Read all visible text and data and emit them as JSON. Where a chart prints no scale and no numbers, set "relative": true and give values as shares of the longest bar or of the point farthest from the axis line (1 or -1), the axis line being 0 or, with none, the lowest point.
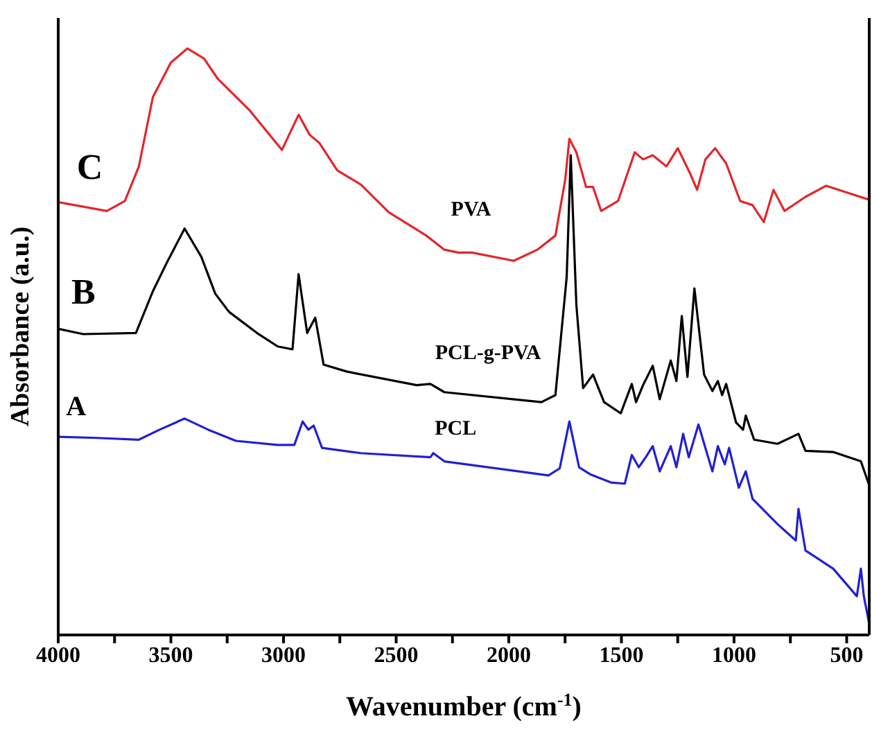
{
  "chart_data": {
    "type": "line",
    "relative": true,
    "xlabel": "Wavenumber (cm$^{-1}$)",
    "ylabel": "Absorbance (a.u.)",
    "xlim": [
      4000,
      400
    ],
    "xticks": [
      4000,
      {
        "value": 3750,
        "label": null
      },
      3500,
      {
        "value": 3250,
        "label": null
      },
      3000,
      {
        "value": 2750,
        "label": null
      },
      2500,
      {
        "value": 2250,
        "label": null
      },
      2000,
      {
        "value": 1750,
        "label": null
      },
      1500,
      {
        "value": 1250,
        "label": null
      },
      1000,
      {
        "value": 750,
        "label": null
      },
      500
    ],
    "marker": "none",
    "line_style": "solid",
    "annotations": [
      "C",
      "B",
      "A"
    ],
    "series": [
      {
        "name": "PVA",
        "color": "#e3262b",
        "x": [
          4000,
          3784,
          3704,
          3642,
          3580,
          3500,
          3427,
          3353,
          3291,
          3149,
          3007,
          2933,
          2884,
          2841,
          2761,
          2656,
          2533,
          2366,
          2286,
          2224,
          2163,
          1978,
          1873,
          1793,
          1750,
          1731,
          1700,
          1657,
          1626,
          1590,
          1515,
          1441,
          1404,
          1361,
          1300,
          1250,
          1195,
          1164,
          1127,
          1084,
          1035,
          973,
          918,
          868,
          825,
          776,
          683,
          591,
          480,
          400
        ],
        "values": [
          0.738,
          0.723,
          0.74,
          0.799,
          0.917,
          0.976,
          1,
          0.983,
          0.948,
          0.894,
          0.827,
          0.887,
          0.853,
          0.839,
          0.792,
          0.768,
          0.721,
          0.681,
          0.657,
          0.652,
          0.652,
          0.638,
          0.657,
          0.681,
          0.775,
          0.846,
          0.823,
          0.764,
          0.764,
          0.723,
          0.74,
          0.823,
          0.811,
          0.818,
          0.799,
          0.83,
          0.787,
          0.759,
          0.811,
          0.83,
          0.804,
          0.74,
          0.733,
          0.704,
          0.759,
          0.723,
          0.747,
          0.766,
          0.752,
          0.742
        ]
      },
      {
        "name": "PCL-g-PVA",
        "color": "#000000",
        "x": [
          4000,
          3889,
          3655,
          3580,
          3519,
          3439,
          3365,
          3303,
          3242,
          3118,
          3026,
          2960,
          2933,
          2895,
          2859,
          2822,
          2718,
          2409,
          2348,
          2286,
          1855,
          1793,
          1743,
          1725,
          1700,
          1670,
          1626,
          1577,
          1503,
          1454,
          1435,
          1404,
          1361,
          1330,
          1281,
          1256,
          1232,
          1207,
          1176,
          1133,
          1096,
          1072,
          1053,
          1035,
          991,
          960,
          948,
          911,
          807,
          714,
          683,
          560,
          437,
          400
        ],
        "values": [
          0.522,
          0.513,
          0.515,
          0.586,
          0.634,
          0.693,
          0.645,
          0.582,
          0.551,
          0.515,
          0.492,
          0.487,
          0.615,
          0.515,
          0.541,
          0.461,
          0.449,
          0.426,
          0.428,
          0.414,
          0.397,
          0.409,
          0.61,
          0.818,
          0.563,
          0.421,
          0.444,
          0.397,
          0.378,
          0.428,
          0.397,
          0.426,
          0.459,
          0.402,
          0.468,
          0.433,
          0.544,
          0.44,
          0.591,
          0.444,
          0.416,
          0.433,
          0.409,
          0.428,
          0.362,
          0.35,
          0.374,
          0.333,
          0.326,
          0.343,
          0.314,
          0.312,
          0.296,
          0.255
        ]
      },
      {
        "name": "PCL",
        "color": "#2020d4",
        "x": [
          4000,
          3827,
          3642,
          3550,
          3439,
          3334,
          3211,
          3026,
          2952,
          2915,
          2890,
          2866,
          2829,
          2656,
          2348,
          2335,
          2286,
          1824,
          1774,
          1731,
          1688,
          1639,
          1546,
          1485,
          1454,
          1423,
          1392,
          1361,
          1330,
          1281,
          1256,
          1226,
          1201,
          1158,
          1115,
          1096,
          1072,
          1041,
          1022,
          979,
          948,
          918,
          807,
          726,
          714,
          683,
          560,
          455,
          437,
          424,
          400
        ],
        "values": [
          0.338,
          0.336,
          0.333,
          0.35,
          0.369,
          0.35,
          0.331,
          0.324,
          0.324,
          0.364,
          0.35,
          0.357,
          0.319,
          0.31,
          0.303,
          0.31,
          0.296,
          0.272,
          0.284,
          0.364,
          0.286,
          0.274,
          0.26,
          0.258,
          0.307,
          0.286,
          0.303,
          0.322,
          0.279,
          0.322,
          0.286,
          0.343,
          0.303,
          0.359,
          0.303,
          0.279,
          0.322,
          0.291,
          0.319,
          0.251,
          0.279,
          0.232,
          0.189,
          0.161,
          0.215,
          0.144,
          0.113,
          0.066,
          0.113,
          0.066,
          0.019
        ]
      }
    ]
  }
}
